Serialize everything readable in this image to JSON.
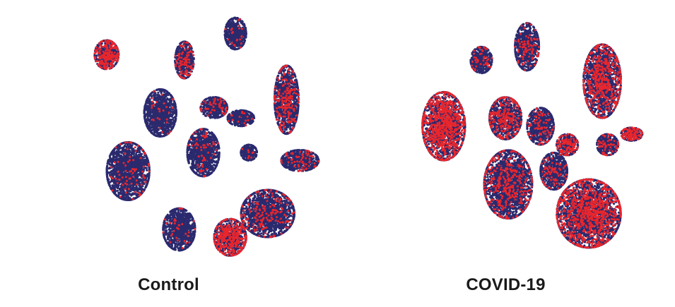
{
  "colors": {
    "base_cells": "#2b2a6e",
    "highlight_cells": "#e8262d",
    "background": "#ffffff"
  },
  "chart_data": [
    {
      "type": "scatter",
      "title": "Control",
      "xlabel": "",
      "ylabel": "",
      "grid": false,
      "axes_visible": false,
      "series": [
        {
          "color": "#2b2a6e",
          "role": "all cells"
        },
        {
          "color": "#e8262d",
          "role": "highlighted cells"
        }
      ],
      "clusters": [
        {
          "x": 0.16,
          "y": 0.82,
          "rx": 0.045,
          "ry": 0.055,
          "red": 0.35
        },
        {
          "x": 0.45,
          "y": 0.8,
          "rx": 0.035,
          "ry": 0.07,
          "red": 0.15
        },
        {
          "x": 0.64,
          "y": 0.9,
          "rx": 0.04,
          "ry": 0.06,
          "red": 0.05
        },
        {
          "x": 0.36,
          "y": 0.6,
          "rx": 0.06,
          "ry": 0.09,
          "red": 0.03
        },
        {
          "x": 0.83,
          "y": 0.65,
          "rx": 0.045,
          "ry": 0.13,
          "red": 0.18
        },
        {
          "x": 0.24,
          "y": 0.38,
          "rx": 0.08,
          "ry": 0.11,
          "red": 0.04
        },
        {
          "x": 0.56,
          "y": 0.62,
          "rx": 0.05,
          "ry": 0.04,
          "red": 0.08
        },
        {
          "x": 0.66,
          "y": 0.58,
          "rx": 0.05,
          "ry": 0.03,
          "red": 0.05
        },
        {
          "x": 0.69,
          "y": 0.45,
          "rx": 0.03,
          "ry": 0.03,
          "red": 0.03
        },
        {
          "x": 0.88,
          "y": 0.42,
          "rx": 0.07,
          "ry": 0.04,
          "red": 0.1
        },
        {
          "x": 0.52,
          "y": 0.45,
          "rx": 0.06,
          "ry": 0.09,
          "red": 0.05
        },
        {
          "x": 0.43,
          "y": 0.16,
          "rx": 0.06,
          "ry": 0.08,
          "red": 0.03
        },
        {
          "x": 0.76,
          "y": 0.22,
          "rx": 0.1,
          "ry": 0.09,
          "red": 0.1
        },
        {
          "x": 0.62,
          "y": 0.13,
          "rx": 0.06,
          "ry": 0.07,
          "red": 0.4
        }
      ]
    },
    {
      "type": "scatter",
      "title": "COVID-19",
      "xlabel": "",
      "ylabel": "",
      "grid": false,
      "axes_visible": false,
      "series": [
        {
          "color": "#2b2a6e",
          "role": "all cells"
        },
        {
          "color": "#e8262d",
          "role": "highlighted cells"
        }
      ],
      "clusters": [
        {
          "x": 0.3,
          "y": 0.8,
          "rx": 0.04,
          "ry": 0.05,
          "red": 0.08
        },
        {
          "x": 0.47,
          "y": 0.85,
          "rx": 0.045,
          "ry": 0.09,
          "red": 0.1
        },
        {
          "x": 0.75,
          "y": 0.72,
          "rx": 0.07,
          "ry": 0.14,
          "red": 0.25
        },
        {
          "x": 0.16,
          "y": 0.55,
          "rx": 0.08,
          "ry": 0.13,
          "red": 0.4
        },
        {
          "x": 0.39,
          "y": 0.58,
          "rx": 0.06,
          "ry": 0.08,
          "red": 0.25
        },
        {
          "x": 0.52,
          "y": 0.55,
          "rx": 0.05,
          "ry": 0.07,
          "red": 0.1
        },
        {
          "x": 0.62,
          "y": 0.48,
          "rx": 0.04,
          "ry": 0.04,
          "red": 0.25
        },
        {
          "x": 0.77,
          "y": 0.48,
          "rx": 0.04,
          "ry": 0.04,
          "red": 0.15
        },
        {
          "x": 0.86,
          "y": 0.52,
          "rx": 0.04,
          "ry": 0.025,
          "red": 0.4
        },
        {
          "x": 0.4,
          "y": 0.33,
          "rx": 0.09,
          "ry": 0.13,
          "red": 0.15
        },
        {
          "x": 0.7,
          "y": 0.22,
          "rx": 0.12,
          "ry": 0.13,
          "red": 0.3
        },
        {
          "x": 0.57,
          "y": 0.38,
          "rx": 0.05,
          "ry": 0.07,
          "red": 0.1
        }
      ]
    }
  ]
}
